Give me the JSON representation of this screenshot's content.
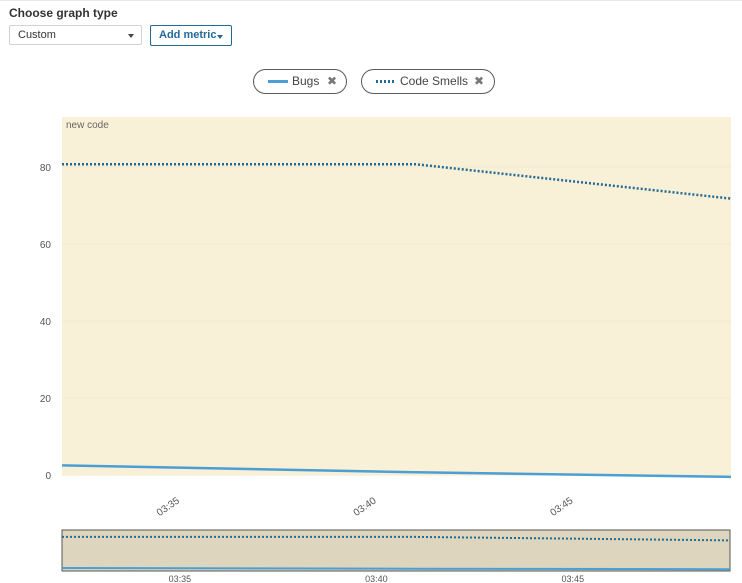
{
  "header": {
    "title": "Choose graph type",
    "graph_type_value": "Custom",
    "add_metric_label": "Add metric"
  },
  "legend": {
    "items": [
      {
        "name": "Bugs",
        "style": "solid"
      },
      {
        "name": "Code Smells",
        "style": "dotted"
      }
    ],
    "remove_glyph": "✖"
  },
  "colors": {
    "bugs": "#4b9fd5",
    "code_smells": "#236a97",
    "new_code_band": "#f9f1d7",
    "navigator_band": "#ddd5bd",
    "link": "#236a97"
  },
  "chart_data": {
    "type": "line",
    "title": "",
    "xlabel": "",
    "ylabel": "",
    "annotation": "new code",
    "ylim": [
      0,
      93
    ],
    "yticks": [
      0,
      20,
      40,
      60,
      80
    ],
    "xlim": [
      "03:32",
      "03:49"
    ],
    "xticks": [
      "03:35",
      "03:40",
      "03:45"
    ],
    "grid": true,
    "series": [
      {
        "name": "Bugs",
        "x": [
          "03:32",
          "03:41",
          "03:49"
        ],
        "values": [
          2.5,
          0.7,
          -0.5
        ]
      },
      {
        "name": "Code Smells",
        "x": [
          "03:32",
          "03:41",
          "03:49"
        ],
        "values": [
          80.7,
          80.7,
          71.8
        ]
      }
    ],
    "navigator_xticks": [
      "03:35",
      "03:40",
      "03:45"
    ]
  }
}
